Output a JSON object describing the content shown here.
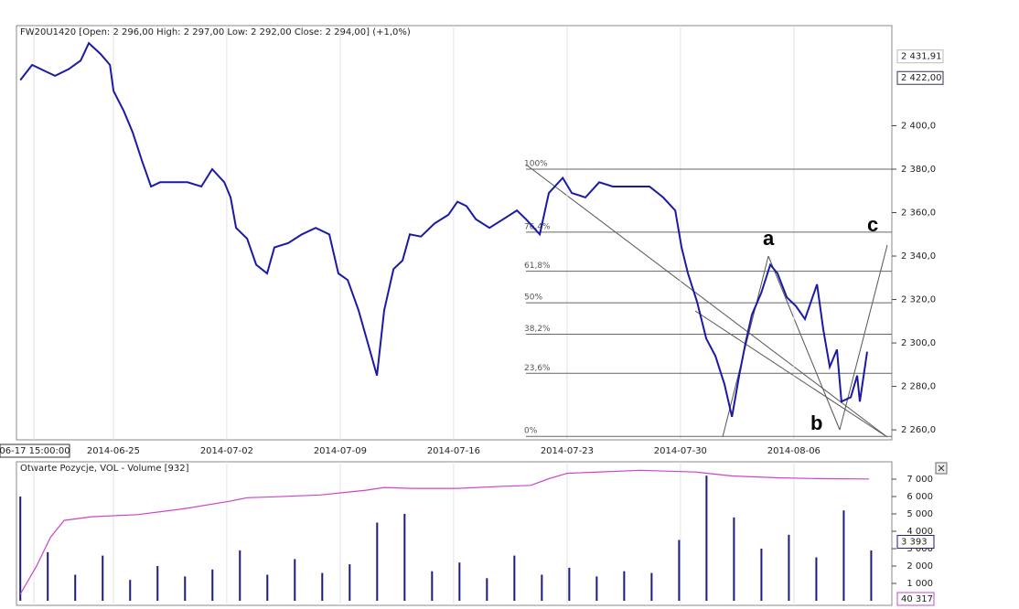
{
  "chart_data": [
    {
      "type": "line",
      "title": "FW20U1420 [Open: 2 296,00  High: 2 297,00  Low: 2 292,00  Close: 2 294,00] (+1,0%)",
      "xlim": [
        -0.77,
        37.82
      ],
      "xticks": [
        {
          "value": 0,
          "label": "06-17 15:00:00"
        },
        {
          "value": 3.5,
          "label": "2014-06-25"
        },
        {
          "value": 8.5,
          "label": "2014-07-02"
        },
        {
          "value": 13.5,
          "label": "2014-07-09"
        },
        {
          "value": 18.5,
          "label": "2014-07-16"
        },
        {
          "value": 23.5,
          "label": "2014-07-23"
        },
        {
          "value": 28.5,
          "label": "2014-07-30"
        },
        {
          "value": 33.5,
          "label": "2014-08-06"
        }
      ],
      "ylim": [
        2255.4,
        2446.1
      ],
      "yticks": [
        {
          "value": 2260,
          "label": "2 260,0"
        },
        {
          "value": 2280,
          "label": "2 280,0"
        },
        {
          "value": 2300,
          "label": "2 300,0"
        },
        {
          "value": 2320,
          "label": "2 320,0"
        },
        {
          "value": 2340,
          "label": "2 340,0"
        },
        {
          "value": 2360,
          "label": "2 360,0"
        },
        {
          "value": 2380,
          "label": "2 380,0"
        },
        {
          "value": 2400,
          "label": "2 400,0"
        }
      ],
      "price_labels": [
        {
          "value": 2431.91,
          "label": "2 431,91"
        },
        {
          "value": 2422,
          "label": "2 422,00"
        }
      ],
      "levels": [
        {
          "value": 2380,
          "label": "100%"
        },
        {
          "value": 2351,
          "label": "76,4%"
        },
        {
          "value": 2333,
          "label": "61,8%"
        },
        {
          "value": 2318.5,
          "label": "50%"
        },
        {
          "value": 2304,
          "label": "38,2%"
        },
        {
          "value": 2286,
          "label": "23,6%"
        },
        {
          "value": 2257,
          "label": "0%"
        }
      ],
      "annotations": [
        "a",
        "b",
        "c"
      ],
      "x": [
        -0.6,
        -0.08,
        0.52,
        0.93,
        1.53,
        2.06,
        2.42,
        2.94,
        3.35,
        3.51,
        3.95,
        4.35,
        4.76,
        5.16,
        5.56,
        6.17,
        6.77,
        7.38,
        7.86,
        8.39,
        8.67,
        8.91,
        9.4,
        9.8,
        10.28,
        10.6,
        11.21,
        11.81,
        12.42,
        13.02,
        13.42,
        13.83,
        14.31,
        14.72,
        15.12,
        15.44,
        15.85,
        16.25,
        16.57,
        17.06,
        17.66,
        18.27,
        18.67,
        19.07,
        19.48,
        20.08,
        20.69,
        21.29,
        21.69,
        22.3,
        22.7,
        23.31,
        23.71,
        24.31,
        24.92,
        25.52,
        26.33,
        27.14,
        27.74,
        28.27,
        28.55,
        28.83,
        29.23,
        29.64,
        30.04,
        30.44,
        30.77,
        31.09,
        31.37,
        31.65,
        32.06,
        32.46,
        32.78,
        33.19,
        33.59,
        33.99,
        34.52,
        34.8,
        35.08,
        35.4,
        35.6,
        36.01,
        36.29,
        36.41,
        36.73
      ],
      "series": [
        {
          "color": "#1a1aa6",
          "values": [
            2421,
            2428,
            2425,
            2423,
            2426,
            2430,
            2438,
            2433,
            2428,
            2416,
            2407,
            2397,
            2384,
            2372,
            2374,
            2374,
            2374,
            2372,
            2380,
            2374,
            2367,
            2353,
            2348,
            2336,
            2332,
            2344,
            2346,
            2350,
            2353,
            2350,
            2332,
            2329,
            2315,
            2300,
            2285,
            2315,
            2334,
            2338,
            2350,
            2349,
            2355,
            2359,
            2365,
            2363,
            2357,
            2353,
            2357,
            2361,
            2357,
            2350,
            2369,
            2376,
            2369,
            2367,
            2374,
            2372,
            2372,
            2372,
            2367,
            2361,
            2344,
            2332,
            2319,
            2302,
            2294,
            2281,
            2266,
            2285,
            2300,
            2313,
            2323,
            2336,
            2332,
            2321,
            2317,
            2311,
            2327,
            2306,
            2289,
            2297,
            2273,
            2275,
            2285,
            2273,
            2296
          ]
        }
      ]
    },
    {
      "type": "bar",
      "title": "Otwarte Pozycje, VOL - Volume [932]",
      "ylim": [
        0,
        8000
      ],
      "yticks": [
        {
          "value": 1000,
          "label": "1 000"
        },
        {
          "value": 2000,
          "label": "2 000"
        },
        {
          "value": 3000,
          "label": "3 000"
        },
        {
          "value": 4000,
          "label": "4 000"
        },
        {
          "value": 5000,
          "label": "5 000"
        },
        {
          "value": 6000,
          "label": "6 000"
        },
        {
          "value": 7000,
          "label": "7 000"
        }
      ],
      "y2lim": [
        0,
        46000
      ],
      "price_labels": [
        {
          "value": 3393,
          "label": "3 393"
        },
        {
          "value": 40317,
          "label": "40 317",
          "axis": "y2"
        }
      ],
      "x": [
        -0.6,
        0.61,
        1.82,
        3.03,
        4.24,
        5.45,
        6.66,
        7.87,
        9.08,
        10.29,
        11.5,
        12.71,
        13.92,
        15.13,
        16.34,
        17.55,
        18.76,
        19.97,
        21.18,
        22.39,
        23.6,
        24.81,
        26.02,
        27.23,
        28.44,
        29.65,
        30.86,
        32.07,
        33.28,
        34.49,
        35.7,
        36.91
      ],
      "series": [
        {
          "color": "#1a1a8c",
          "values": [
            6000,
            2800,
            1500,
            2600,
            1200,
            2000,
            1400,
            1800,
            2900,
            1500,
            2400,
            1600,
            2100,
            4500,
            5000,
            1700,
            2200,
            1300,
            2600,
            1500,
            1900,
            1400,
            1700,
            1600,
            3500,
            7200,
            4800,
            3000,
            3800,
            2500,
            5200,
            2900
          ]
        },
        {
          "color": "#cc44cc",
          "axis": "y2",
          "x": [
            -0.6,
            0.12,
            0.73,
            1.33,
            2.54,
            4.56,
            6.57,
            8.59,
            9.4,
            10.6,
            12.62,
            14.64,
            15.44,
            16.65,
            18.67,
            20.69,
            21.9,
            22.7,
            23.51,
            26.73,
            29.15,
            30.77,
            32.78,
            34.8,
            36.81
          ],
          "values": [
            2200,
            11600,
            21000,
            26600,
            27800,
            28500,
            30400,
            32900,
            34100,
            34400,
            35000,
            36600,
            37500,
            37200,
            37200,
            37900,
            38200,
            40400,
            42200,
            43200,
            42600,
            41300,
            40700,
            40400,
            40317
          ]
        }
      ]
    }
  ]
}
